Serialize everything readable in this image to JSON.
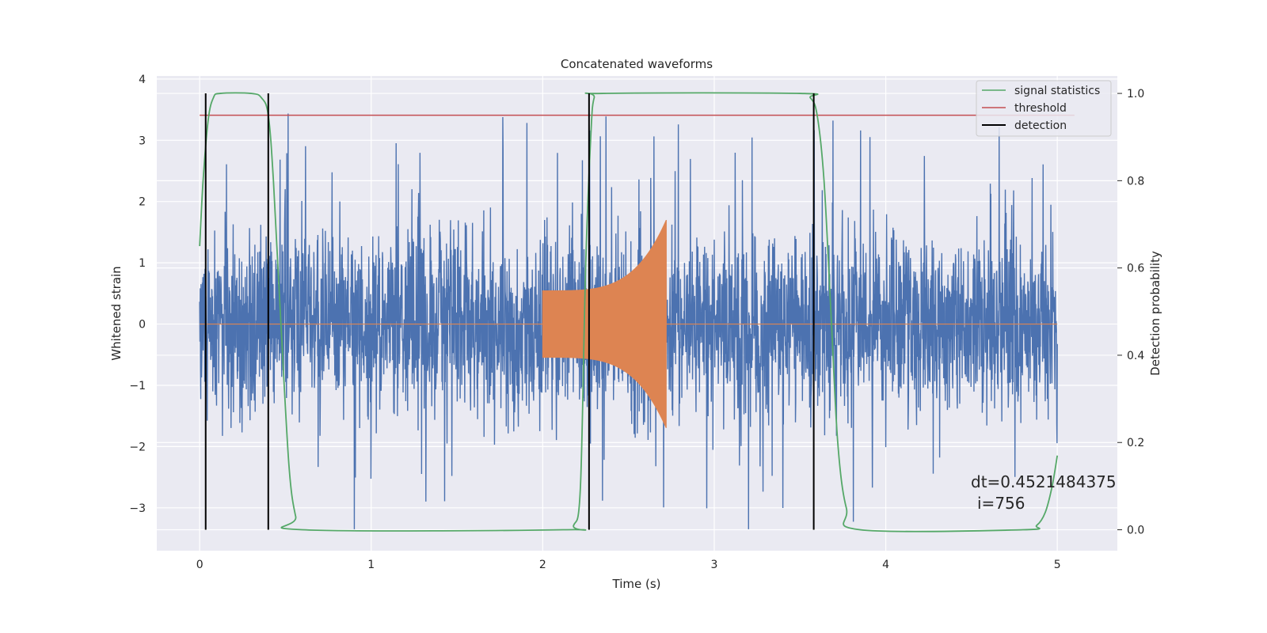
{
  "chart_data": {
    "type": "line",
    "title": "Concatenated waveforms",
    "xlabel": "Time (s)",
    "ylabel": "Whitened strain",
    "y2label": "Detection probability",
    "xlim": [
      -0.25,
      5.35
    ],
    "ylim": [
      -3.7,
      4.05
    ],
    "y2lim": [
      -0.048,
      1.04
    ],
    "xticks": [
      0,
      1,
      2,
      3,
      4,
      5
    ],
    "xtick_labels": [
      "0",
      "1",
      "2",
      "3",
      "4",
      "5"
    ],
    "yticks": [
      -3,
      -2,
      -1,
      0,
      1,
      2,
      3,
      4
    ],
    "ytick_labels": [
      "−3",
      "−2",
      "−1",
      "0",
      "1",
      "2",
      "3",
      "4"
    ],
    "y2ticks": [
      0.0,
      0.2,
      0.4,
      0.6,
      0.8,
      1.0
    ],
    "y2tick_labels": [
      "0.0",
      "0.2",
      "0.4",
      "0.6",
      "0.8",
      "1.0"
    ],
    "grid": true,
    "legend_position": "top-right",
    "colors": {
      "background": "#eaeaf2",
      "grid": "#ffffff",
      "noise": "#4c72b0",
      "injection": "#dd8452",
      "signal_statistics": "#55a868",
      "threshold": "#c44e52",
      "detection": "#000000"
    },
    "series": [
      {
        "key": "noise",
        "axis": "left",
        "x_range": [
          0,
          5
        ],
        "amplitude_std": 0.75,
        "peak_max": 3.7,
        "peak_min": -3.35
      },
      {
        "key": "injection",
        "axis": "left",
        "x_range": [
          0,
          5
        ],
        "chirp_start": 2.0,
        "chirp_end": 2.72,
        "amplitude_start": 0.55,
        "amplitude_end": 1.7
      },
      {
        "name": "signal statistics",
        "key": "signal_statistics",
        "axis": "right",
        "x": [
          0,
          0.02,
          0.05,
          0.08,
          0.12,
          0.3,
          0.36,
          0.4,
          0.43,
          0.47,
          0.52,
          0.56,
          0.6,
          2.12,
          2.18,
          2.22,
          2.25,
          2.28,
          2.3,
          2.35,
          3.5,
          3.56,
          3.6,
          3.64,
          3.68,
          3.72,
          3.77,
          3.85,
          4.8,
          4.88,
          4.93,
          4.97,
          5.0
        ],
        "values": [
          0.65,
          0.8,
          0.94,
          0.99,
          1.0,
          1.0,
          0.99,
          0.95,
          0.8,
          0.5,
          0.15,
          0.03,
          0.0,
          0.0,
          0.01,
          0.1,
          0.6,
          0.9,
          0.99,
          1.0,
          1.0,
          0.99,
          0.95,
          0.8,
          0.5,
          0.2,
          0.05,
          0.0,
          0.0,
          0.01,
          0.04,
          0.1,
          0.17
        ]
      },
      {
        "name": "threshold",
        "key": "threshold",
        "axis": "right",
        "x": [
          0,
          5.1
        ],
        "values": [
          0.95,
          0.95
        ]
      },
      {
        "name": "detection",
        "key": "detection",
        "axis": "right",
        "x": [
          0.035,
          0.4,
          2.27,
          3.58
        ],
        "ymin": 0.0,
        "ymax": 1.0
      }
    ],
    "annotations": [
      "dt=0.4521484375",
      "i=756"
    ]
  }
}
